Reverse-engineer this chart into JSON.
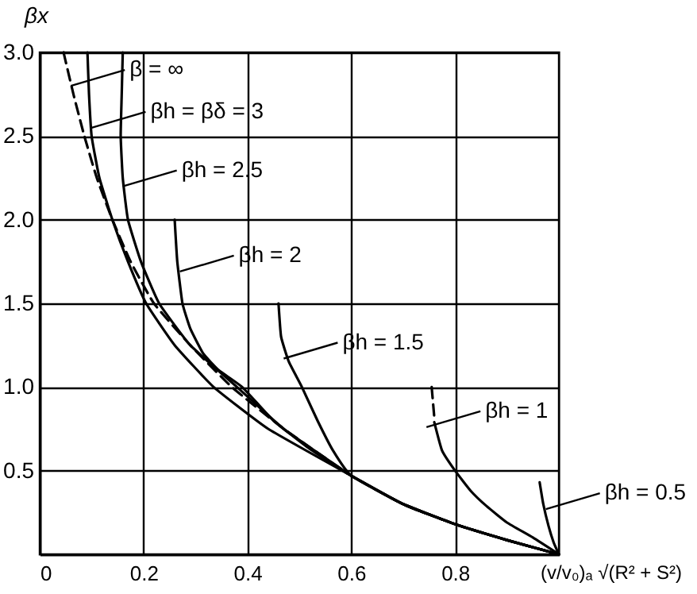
{
  "chart_data": {
    "type": "line",
    "xlabel": "(v/v₀)ₐ √(R² + S²)",
    "ylabel": "βx",
    "xlim": [
      0,
      1.0
    ],
    "ylim": [
      0,
      3.0
    ],
    "xticks": [
      {
        "value": 0,
        "label": "0"
      },
      0.2,
      0.4,
      0.6,
      0.8
    ],
    "yticks": [
      0.5,
      {
        "value": 1,
        "label": "1.0"
      },
      1.5,
      {
        "value": 2,
        "label": "2.0"
      },
      2.5,
      {
        "value": 3,
        "label": "3.0"
      }
    ],
    "grid": true,
    "line_style": "solid",
    "series": [
      {
        "color": "#000000",
        "line_style": "dashed",
        "x": [
          0.046,
          0.065,
          0.086,
          0.11,
          0.14,
          0.175,
          0.22,
          0.29,
          0.37,
          0.47,
          0.6,
          0.7,
          0.8,
          0.9,
          1.0
        ],
        "values": [
          3.0,
          2.75,
          2.5,
          2.25,
          2.0,
          1.75,
          1.5,
          1.25,
          1.0,
          0.75,
          0.47,
          0.3,
          0.18,
          0.085,
          0.0
        ]
      },
      {
        "color": "#000000",
        "x": [
          0.092,
          0.095,
          0.1,
          0.115,
          0.14,
          0.17,
          0.205,
          0.26,
          0.335,
          0.44,
          0.6,
          0.7,
          0.8,
          0.9,
          1.0
        ],
        "values": [
          3.0,
          2.75,
          2.5,
          2.25,
          2.0,
          1.75,
          1.5,
          1.25,
          1.0,
          0.75,
          0.47,
          0.3,
          0.18,
          0.085,
          0.0
        ]
      },
      {
        "color": "#000000",
        "x": [
          0.16,
          0.158,
          0.156,
          0.16,
          0.17,
          0.195,
          0.23,
          0.29,
          0.38,
          0.47,
          0.6,
          0.7,
          0.8,
          0.9,
          1.0
        ],
        "values": [
          3.0,
          2.75,
          2.5,
          2.25,
          2.0,
          1.75,
          1.5,
          1.25,
          1.0,
          0.75,
          0.47,
          0.3,
          0.18,
          0.085,
          0.0
        ]
      },
      {
        "color": "#000000",
        "x": [
          0.26,
          0.265,
          0.275,
          0.29,
          0.315,
          0.345,
          0.39,
          0.45,
          0.52,
          0.6,
          0.7,
          0.8,
          0.9,
          1.0
        ],
        "values": [
          2.0,
          1.75,
          1.5,
          1.35,
          1.2,
          1.1,
          1.0,
          0.8,
          0.63,
          0.47,
          0.3,
          0.18,
          0.085,
          0.0
        ]
      },
      {
        "color": "#000000",
        "x": [
          0.46,
          0.465,
          0.48,
          0.505,
          0.535,
          0.565,
          0.6,
          0.7,
          0.8,
          0.9,
          1.0
        ],
        "values": [
          1.5,
          1.3,
          1.15,
          1.0,
          0.8,
          0.62,
          0.47,
          0.3,
          0.18,
          0.085,
          0.0
        ]
      },
      {
        "color": "#000000",
        "line_style": "dashed",
        "x": [
          0.755,
          0.76
        ],
        "values": [
          1.0,
          0.82
        ]
      },
      {
        "color": "#000000",
        "x": [
          0.76,
          0.775,
          0.8,
          0.83,
          0.86,
          0.9,
          0.95,
          1.0
        ],
        "values": [
          0.79,
          0.62,
          0.5,
          0.38,
          0.29,
          0.19,
          0.1,
          0.0
        ]
      },
      {
        "color": "#000000",
        "x": [
          0.963,
          0.97,
          0.98,
          0.99,
          1.0
        ],
        "values": [
          0.43,
          0.3,
          0.17,
          0.07,
          0.0
        ]
      }
    ],
    "annotations": [
      {
        "text": "β = ∞",
        "x": 0.06,
        "y": 2.8
      },
      {
        "text": "βh = βδ = 3",
        "x": 0.1,
        "y": 2.55
      },
      {
        "text": "βh = 2.5",
        "x": 0.16,
        "y": 2.2
      },
      {
        "text": "βh = 2",
        "x": 0.27,
        "y": 1.69
      },
      {
        "text": "βh = 1.5",
        "x": 0.47,
        "y": 1.17
      },
      {
        "text": "βh = 1",
        "x": 0.745,
        "y": 0.76
      },
      {
        "text": "βh = 0.5",
        "x": 0.975,
        "y": 0.27
      }
    ]
  }
}
